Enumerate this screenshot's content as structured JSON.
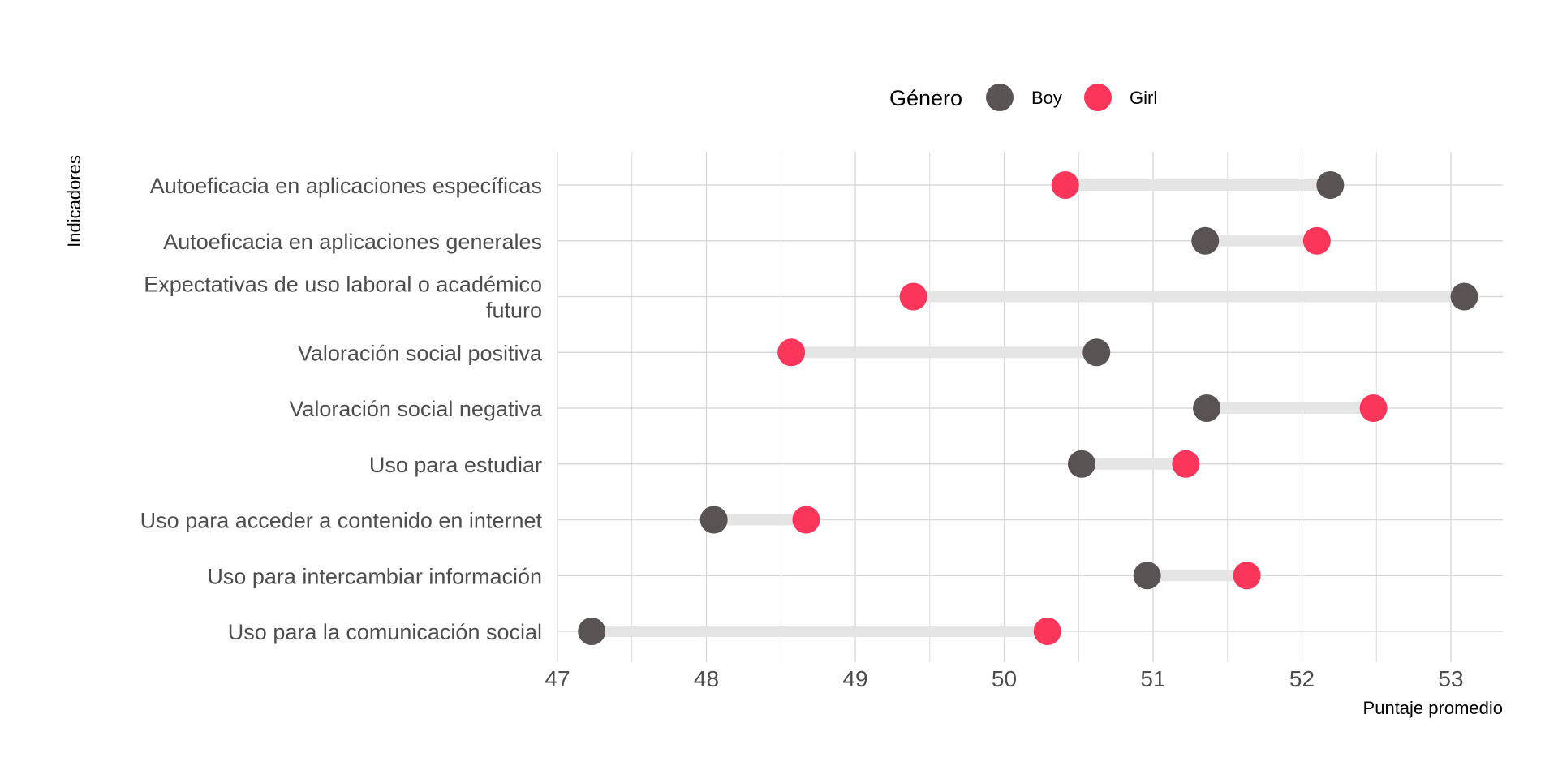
{
  "chart_data": {
    "type": "dumbbell",
    "xlabel": "Puntaje promedio",
    "ylabel": "Indicadores",
    "xlim": [
      47,
      53.35
    ],
    "xticks": [
      47,
      48,
      49,
      50,
      51,
      52,
      53
    ],
    "grid": true,
    "legend": {
      "title": "Género",
      "position": "top",
      "entries": [
        {
          "name": "Boy",
          "color": "#5a5354"
        },
        {
          "name": "Girl",
          "color": "#fc355b"
        }
      ]
    },
    "categories": [
      [
        "Autoeficacia en aplicaciones específicas"
      ],
      [
        "Autoeficacia en aplicaciones generales"
      ],
      [
        "Expectativas de uso laboral o académico",
        "futuro"
      ],
      [
        "Valoración social positiva"
      ],
      [
        "Valoración social negativa"
      ],
      [
        "Uso para estudiar"
      ],
      [
        "Uso para acceder a contenido en internet"
      ],
      [
        "Uso para intercambiar información"
      ],
      [
        "Uso para la comunicación social"
      ]
    ],
    "series": [
      {
        "name": "Boy",
        "values": [
          52.19,
          51.35,
          53.09,
          50.62,
          51.36,
          50.52,
          48.05,
          50.96,
          47.23
        ]
      },
      {
        "name": "Girl",
        "values": [
          50.41,
          52.1,
          49.39,
          48.57,
          52.48,
          51.22,
          48.67,
          51.63,
          50.29
        ]
      }
    ],
    "colors": {
      "segment": "#e5e5e5",
      "grid": "#d9d9d9"
    }
  }
}
